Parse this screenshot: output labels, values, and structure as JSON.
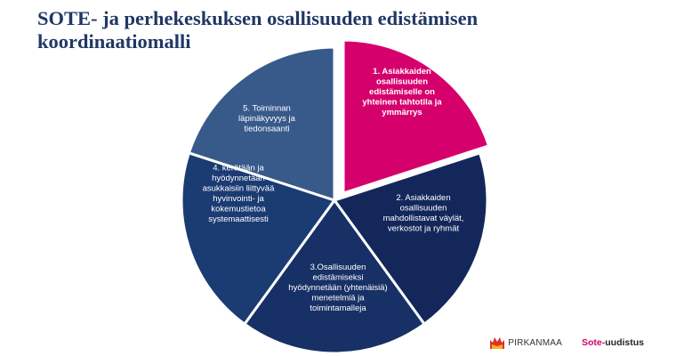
{
  "title": "SOTE- ja perhekeskuksen osallisuuden edistämisen koordinaatiomalli",
  "colors": {
    "title": "#1f3864",
    "segment_1": "#d6006d",
    "segment_2": "#13275a",
    "segment_3": "#173066",
    "segment_4": "#1b3b73",
    "segment_5": "#385a8a",
    "logo_red": "#e0302a",
    "logo_yellow": "#f2b21a",
    "sote_accent": "#d1006c"
  },
  "segments": [
    {
      "id": 1,
      "lines": [
        "1. Asiakkaiden",
        "osallisuuden",
        "edistämiselle on",
        "yhteinen tahtotila ja",
        "ymmärrys"
      ]
    },
    {
      "id": 2,
      "lines": [
        "2. Asiakkaiden",
        "osallisuuden",
        "mahdollistavat väylät,",
        "verkostot ja ryhmät"
      ]
    },
    {
      "id": 3,
      "lines": [
        "3.Osallisuuden",
        "edistämiseksi",
        "hyödynnetään (yhtenäisiä)",
        "menetelmiä ja",
        "toimintamalleja"
      ]
    },
    {
      "id": 4,
      "lines": [
        "4. kerätään ja",
        "hyödynnetään",
        "asukkaisiin liittyvää",
        "hyvinvointi- ja",
        "kokemustietoa",
        "systemaattisesti"
      ]
    },
    {
      "id": 5,
      "lines": [
        "5. Toiminnan",
        "läpinäkyvyys ja",
        "tiedonsaanti"
      ]
    }
  ],
  "footer": {
    "pirkanmaa": "PIRKANMAA",
    "sote_prefix": "Sote-",
    "sote_suffix": "uudistus"
  },
  "icons": {
    "pirkanmaa_logo": "pirkanmaa-crown-logo"
  }
}
